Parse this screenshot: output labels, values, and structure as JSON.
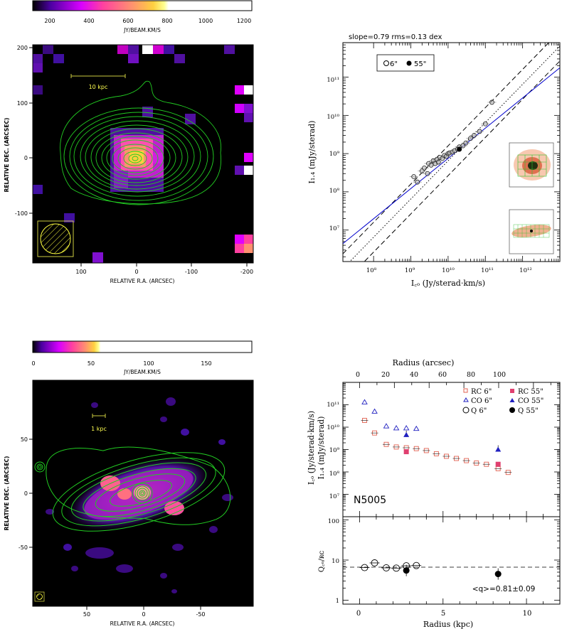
{
  "panel_tl": {
    "colorbar_ticks": [
      "200",
      "400",
      "600",
      "800",
      "1000",
      "1200"
    ],
    "colorbar_unit": "JY/BEAM.KM/S",
    "y_ticks": [
      "200",
      "100",
      "0",
      "-100"
    ],
    "x_ticks": [
      "100",
      "0",
      "-100",
      "-200"
    ],
    "ylabel": "RELATIVE DEC. (ARCSEC)",
    "xlabel": "RELATIVE R.A. (ARCSEC)",
    "scale_label": "10 kpc"
  },
  "panel_tr": {
    "title": "slope=0.79 rms=0.13 dex",
    "legend_open": "6\"",
    "legend_filled": "55\"",
    "y_ticks": [
      "10¹¹",
      "10¹⁰",
      "10⁹",
      "10⁸",
      "10⁷"
    ],
    "x_ticks": [
      "10⁸",
      "10⁹",
      "10¹⁰",
      "10¹¹",
      "10¹²"
    ],
    "ylabel": "I₁.₄ (mJy/sterad)",
    "xlabel": "I꜀ₒ (Jy/sterad·km/s)"
  },
  "panel_bl": {
    "colorbar_ticks": [
      "0",
      "50",
      "100",
      "150"
    ],
    "colorbar_unit": "JY/BEAM.KM/S",
    "y_ticks": [
      "50",
      "0",
      "-50"
    ],
    "x_ticks": [
      "50",
      "0",
      "-50"
    ],
    "ylabel": "RELATIVE DEC. (ARCSEC)",
    "xlabel": "RELATIVE R.A. (ARCSEC)",
    "scale_label": "1 kpc"
  },
  "panel_br": {
    "top_axis_label": "Radius (arcsec)",
    "top_ticks": [
      "0",
      "20",
      "40",
      "60",
      "80",
      "100"
    ],
    "galaxy": "N5005",
    "legend": {
      "rc6": "RC 6\"",
      "co6": "CO 6\"",
      "q6": "Q 6\"",
      "rc55": "RC 55\"",
      "co55": "CO 55\"",
      "q55": "Q 55\""
    },
    "upper_y_ticks": [
      "10¹¹",
      "10¹⁰",
      "10⁹",
      "10⁸",
      "10⁷"
    ],
    "upper_ylabel1": "I꜀ₒ (Jy/sterad·km/s)",
    "upper_ylabel2": "I₁.₄ (mJy/sterad)",
    "lower_y_ticks": [
      "100",
      "10",
      "1"
    ],
    "lower_ylabel": "Q꜀ₒ/ʀᴄ",
    "q_annotation": "<q>=0.81±0.09",
    "x_ticks": [
      "0",
      "5",
      "10"
    ],
    "xlabel": "Radius (kpc)"
  },
  "chart_data": [
    {
      "type": "scatter",
      "title": "slope=0.79 rms=0.13 dex",
      "xlabel": "I_CO (Jy/sterad·km/s)",
      "ylabel": "I_1.4 (mJy/sterad)",
      "xscale": "log",
      "yscale": "log",
      "xlim": [
        15000000.0,
        10000000000000.0
      ],
      "ylim": [
        1500000.0,
        800000000000.0
      ],
      "fit_line": {
        "slope": 0.79,
        "color": "#0000cc"
      },
      "series": [
        {
          "name": "6\"",
          "marker": "open-circle",
          "x": [
            1200000000.0,
            1500000000.0,
            2000000000.0,
            2300000000.0,
            2800000000.0,
            3000000000.0,
            3500000000.0,
            4000000000.0,
            4500000000.0,
            5000000000.0,
            5500000000.0,
            6000000000.0,
            7000000000.0,
            8000000000.0,
            9000000000.0,
            10000000000.0,
            11000000000.0,
            13000000000.0,
            15000000000.0,
            18000000000.0,
            20000000000.0,
            25000000000.0,
            30000000000.0,
            40000000000.0,
            50000000000.0,
            70000000000.0,
            100000000000.0,
            150000000000.0
          ],
          "y": [
            250000000.0,
            180000000.0,
            350000000.0,
            420000000.0,
            300000000.0,
            550000000.0,
            500000000.0,
            650000000.0,
            550000000.0,
            700000000.0,
            600000000.0,
            800000000.0,
            750000000.0,
            900000000.0,
            850000000.0,
            1000000000.0,
            1050000000.0,
            1100000000.0,
            1200000000.0,
            1300000000.0,
            1500000000.0,
            1600000000.0,
            1900000000.0,
            2500000000.0,
            3000000000.0,
            3800000000.0,
            6000000000.0,
            22000000000.0
          ]
        },
        {
          "name": "55\"",
          "marker": "filled-circle",
          "x": [
            20000000000.0
          ],
          "y": [
            1300000000.0
          ]
        }
      ]
    },
    {
      "type": "scatter",
      "title": "N5005",
      "xlabel": "Radius (kpc)",
      "x2label": "Radius (arcsec)",
      "ylabel": "I_CO (Jy/sterad·km/s) / I_1.4 (mJy/sterad)",
      "yscale": "log",
      "xlim": [
        -1,
        12
      ],
      "ylim": [
        1000000.0,
        1000000000000.0
      ],
      "series": [
        {
          "name": "RC 6\"",
          "x": [
            0.3,
            0.9,
            1.6,
            2.2,
            2.8,
            3.4,
            4.0,
            4.6,
            5.2,
            5.8,
            6.4,
            7.0,
            7.6,
            8.3,
            8.9
          ],
          "y": [
            20000000000.0,
            5500000000.0,
            1700000000.0,
            1300000000.0,
            1200000000.0,
            1100000000.0,
            900000000.0,
            650000000.0,
            500000000.0,
            400000000.0,
            320000000.0,
            250000000.0,
            220000000.0,
            140000000.0,
            95000000.0
          ]
        },
        {
          "name": "CO 6\"",
          "x": [
            0.3,
            0.9,
            1.6,
            2.2,
            2.8,
            3.4
          ],
          "y": [
            130000000000.0,
            50000000000.0,
            11000000000.0,
            9000000000.0,
            9000000000.0,
            8500000000.0
          ]
        },
        {
          "name": "RC 55\"",
          "x": [
            2.8,
            8.3
          ],
          "y": [
            800000000.0,
            220000000.0
          ]
        },
        {
          "name": "CO 55\"",
          "x": [
            2.8,
            8.3
          ],
          "y": [
            4500000000.0,
            1000000000.0
          ]
        }
      ]
    },
    {
      "type": "scatter",
      "ylabel": "Q_CO/RC",
      "yscale": "log",
      "xlim": [
        -1,
        12
      ],
      "ylim": [
        0.8,
        120
      ],
      "reference_line": 6.5,
      "annotation": "<q>=0.81±0.09",
      "series": [
        {
          "name": "Q 6\"",
          "x": [
            0.3,
            0.9,
            1.6,
            2.2,
            2.8,
            3.4
          ],
          "y": [
            6.5,
            8.5,
            6.4,
            6.3,
            7.2,
            7.3
          ]
        },
        {
          "name": "Q 55\"",
          "x": [
            2.8,
            8.3
          ],
          "y": [
            5.5,
            4.5
          ]
        }
      ]
    }
  ]
}
